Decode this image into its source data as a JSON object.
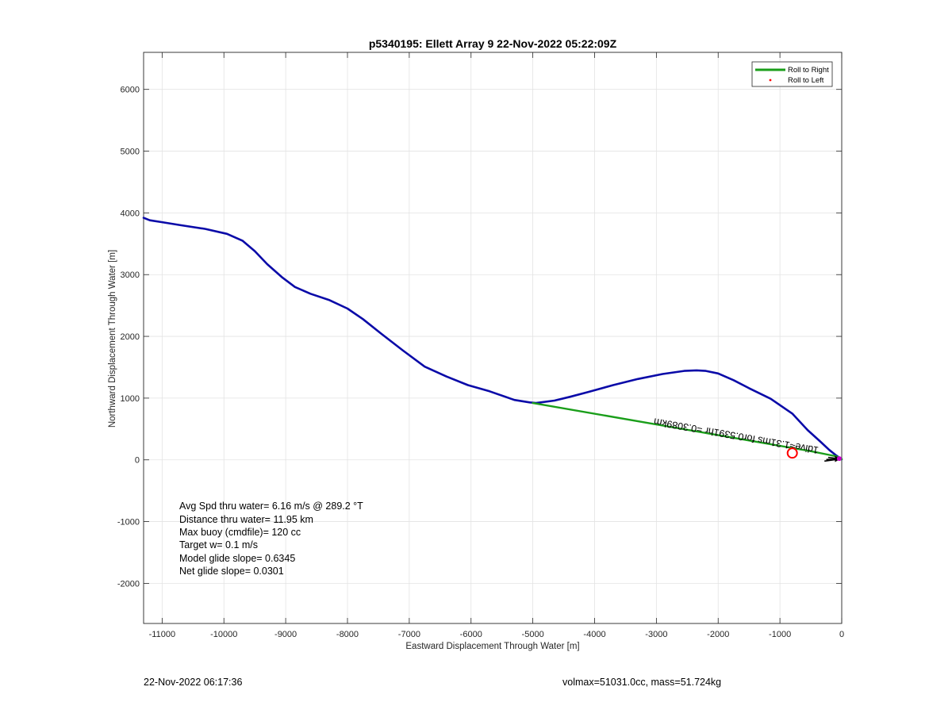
{
  "chart_data": {
    "type": "line",
    "title": "p5340195: Ellett Array 9 22-Nov-2022 05:22:09Z",
    "xlabel": "Eastward Displacement Through Water [m]",
    "ylabel": "Northward Displacement Through Water [m]",
    "xlim": [
      -11300,
      0
    ],
    "ylim": [
      -2650,
      6600
    ],
    "xticks": [
      -11000,
      -10000,
      -9000,
      -8000,
      -7000,
      -6000,
      -5000,
      -4000,
      -3000,
      -2000,
      -1000,
      0
    ],
    "yticks": [
      -2000,
      -1000,
      0,
      1000,
      2000,
      3000,
      4000,
      5000,
      6000
    ],
    "grid": true,
    "legend": {
      "position": "top-right",
      "entries": [
        {
          "label": "Roll to Right",
          "color": "#1a9e1a",
          "marker": "line"
        },
        {
          "label": "Roll to Left",
          "color": "#ff0000",
          "marker": "dot"
        }
      ]
    },
    "series": [
      {
        "color": "#0a0aa8",
        "x": [
          -11300,
          -11200,
          -11000,
          -10700,
          -10300,
          -9950,
          -9700,
          -9500,
          -9300,
          -9050,
          -8850,
          -8600,
          -8300,
          -8000,
          -7750,
          -7450,
          -7100,
          -6750,
          -6400,
          -6050,
          -5700,
          -5300,
          -5050,
          -4950,
          -4650,
          -4400,
          -4100,
          -3700,
          -3300,
          -2900,
          -2550,
          -2350,
          -2200,
          -2000,
          -1750,
          -1500,
          -1150,
          -800,
          -550,
          -350,
          -200,
          -100,
          -60,
          -30,
          0
        ],
        "y": [
          3920,
          3880,
          3850,
          3800,
          3740,
          3660,
          3550,
          3380,
          3170,
          2950,
          2800,
          2690,
          2590,
          2450,
          2280,
          2040,
          1770,
          1510,
          1350,
          1210,
          1110,
          970,
          930,
          920,
          960,
          1020,
          1100,
          1210,
          1310,
          1390,
          1440,
          1450,
          1440,
          1400,
          1290,
          1160,
          990,
          750,
          480,
          300,
          160,
          80,
          50,
          30,
          10
        ]
      },
      {
        "name": "Roll to Right",
        "color": "#1a9e1a",
        "x": [
          -5000,
          -500,
          -200,
          -100,
          -50,
          0
        ],
        "y": [
          920,
          140,
          80,
          60,
          40,
          10
        ]
      }
    ],
    "annotations": {
      "rotated_label": "1dive≈1.31ms for0.5391hr =0.3089km",
      "circle_marker": {
        "x": -800,
        "y": 110,
        "color": "#ff0000"
      },
      "current_arrow_color": "#000000",
      "end_marker": {
        "x": -40,
        "y": 20,
        "color": "#cc00cc"
      }
    },
    "info_lines": [
      "Avg Spd thru water=  6.16 m/s @ 289.2 °T",
      "Distance thru water= 11.95 km",
      "Max buoy (cmdfile)= 120 cc",
      "Target w= 0.1 m/s",
      "Model glide slope= 0.6345",
      "Net glide slope= 0.0301"
    ]
  },
  "footer": {
    "timestamp": "22-Nov-2022 06:17:36",
    "volmax": "volmax=51031.0cc, mass=51.724kg"
  }
}
